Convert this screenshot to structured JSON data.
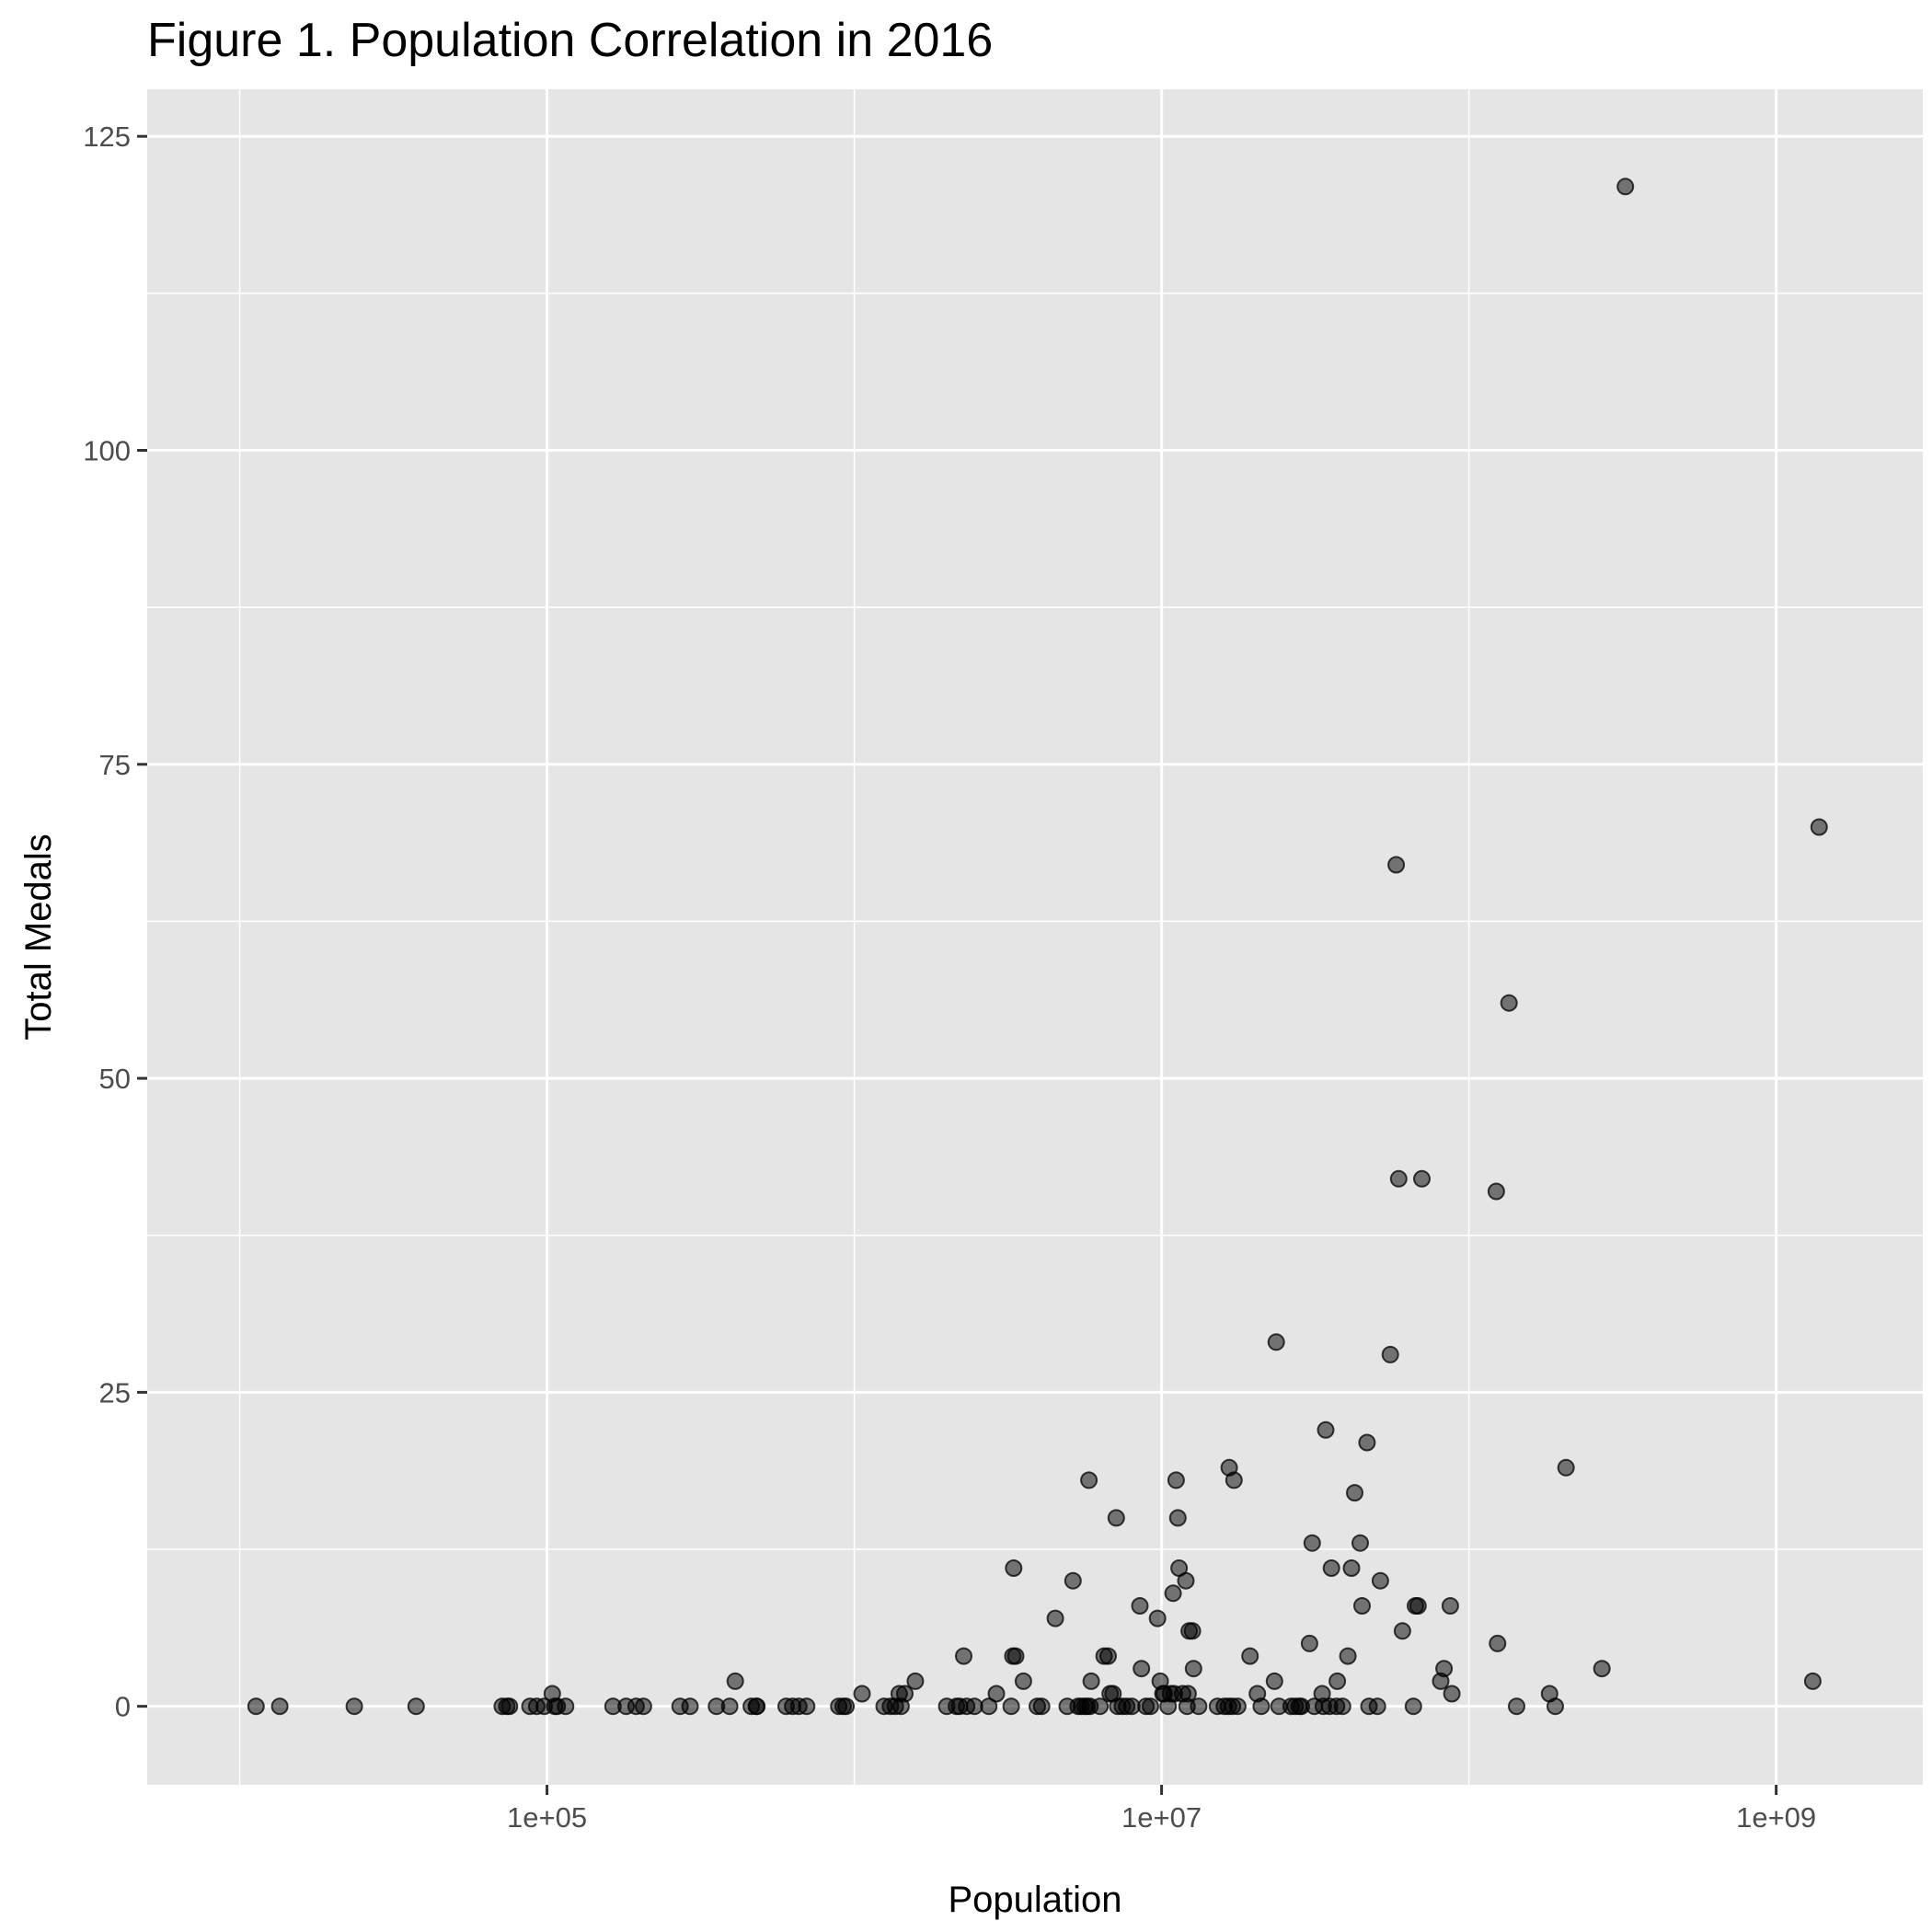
{
  "chart_data": {
    "type": "scatter",
    "title": "Figure 1. Population Correlation in 2016",
    "xlabel": "Population",
    "ylabel": "Total Medals",
    "x_scale": "log10",
    "xlim": [
      5000,
      3000000000
    ],
    "ylim": [
      -6.25,
      128.75
    ],
    "x_ticks": [
      {
        "value": 100000,
        "label": "1e+05"
      },
      {
        "value": 10000000,
        "label": "1e+07"
      },
      {
        "value": 1000000000,
        "label": "1e+09"
      }
    ],
    "x_minor_ticks": [
      10000,
      1000000,
      100000000
    ],
    "y_ticks": [
      {
        "value": 0,
        "label": "0"
      },
      {
        "value": 25,
        "label": "25"
      },
      {
        "value": 50,
        "label": "50"
      },
      {
        "value": 75,
        "label": "75"
      },
      {
        "value": 100,
        "label": "100"
      },
      {
        "value": 125,
        "label": "125"
      }
    ],
    "y_minor_ticks": [
      12.5,
      37.5,
      62.5,
      87.5,
      112.5
    ],
    "grid": true,
    "background": "#e5e5e5",
    "gridline_color": "#ffffff",
    "point_color": "#000000",
    "point_opacity": 0.5,
    "points": [
      [
        11300,
        0
      ],
      [
        13500,
        0
      ],
      [
        23600,
        0
      ],
      [
        37500,
        0
      ],
      [
        71500,
        0
      ],
      [
        74000,
        0
      ],
      [
        75500,
        0
      ],
      [
        88000,
        0
      ],
      [
        92600,
        0
      ],
      [
        98000,
        0
      ],
      [
        104000,
        1
      ],
      [
        106000,
        0
      ],
      [
        108000,
        0
      ],
      [
        115000,
        0
      ],
      [
        164000,
        0
      ],
      [
        181000,
        0
      ],
      [
        195000,
        0
      ],
      [
        206000,
        0
      ],
      [
        271000,
        0
      ],
      [
        292000,
        0
      ],
      [
        356000,
        0
      ],
      [
        393000,
        0
      ],
      [
        410000,
        2
      ],
      [
        462000,
        0
      ],
      [
        480000,
        0
      ],
      [
        482000,
        0
      ],
      [
        600000,
        0
      ],
      [
        630000,
        0
      ],
      [
        660000,
        0
      ],
      [
        700000,
        0
      ],
      [
        890000,
        0
      ],
      [
        920000,
        0
      ],
      [
        940000,
        0
      ],
      [
        1060000,
        1
      ],
      [
        1250000,
        0
      ],
      [
        1310000,
        0
      ],
      [
        1360000,
        0
      ],
      [
        1400000,
        1
      ],
      [
        1420000,
        0
      ],
      [
        1460000,
        1
      ],
      [
        1580000,
        2
      ],
      [
        2000000,
        0
      ],
      [
        2150000,
        0
      ],
      [
        2200000,
        0
      ],
      [
        2270000,
        4
      ],
      [
        2320000,
        0
      ],
      [
        2460000,
        0
      ],
      [
        2740000,
        0
      ],
      [
        2900000,
        1
      ],
      [
        3240000,
        0
      ],
      [
        3280000,
        4
      ],
      [
        3300000,
        11
      ],
      [
        3350000,
        4
      ],
      [
        3550000,
        2
      ],
      [
        3940000,
        0
      ],
      [
        4070000,
        0
      ],
      [
        4510000,
        7
      ],
      [
        4930000,
        0
      ],
      [
        5150000,
        10
      ],
      [
        5350000,
        0
      ],
      [
        5480000,
        0
      ],
      [
        5620000,
        0
      ],
      [
        5720000,
        0
      ],
      [
        5800000,
        18
      ],
      [
        5850000,
        0
      ],
      [
        5900000,
        2
      ],
      [
        6300000,
        0
      ],
      [
        6500000,
        4
      ],
      [
        6700000,
        4
      ],
      [
        6800000,
        1
      ],
      [
        6950000,
        1
      ],
      [
        7120000,
        15
      ],
      [
        7200000,
        0
      ],
      [
        7450000,
        0
      ],
      [
        7700000,
        0
      ],
      [
        8000000,
        0
      ],
      [
        8500000,
        8
      ],
      [
        8600000,
        3
      ],
      [
        8900000,
        0
      ],
      [
        9200000,
        0
      ],
      [
        9700000,
        7
      ],
      [
        9900000,
        2
      ],
      [
        10100000,
        1
      ],
      [
        10200000,
        1
      ],
      [
        10500000,
        0
      ],
      [
        10700000,
        1
      ],
      [
        10900000,
        9
      ],
      [
        11000000,
        1
      ],
      [
        11150000,
        18
      ],
      [
        11300000,
        15
      ],
      [
        11400000,
        11
      ],
      [
        11700000,
        1
      ],
      [
        12000000,
        10
      ],
      [
        12100000,
        0
      ],
      [
        12200000,
        1
      ],
      [
        12300000,
        6
      ],
      [
        12600000,
        6
      ],
      [
        12700000,
        3
      ],
      [
        13200000,
        0
      ],
      [
        15200000,
        0
      ],
      [
        16000000,
        0
      ],
      [
        16500000,
        0
      ],
      [
        16600000,
        19
      ],
      [
        17000000,
        0
      ],
      [
        17200000,
        18
      ],
      [
        17700000,
        0
      ],
      [
        19400000,
        4
      ],
      [
        20500000,
        1
      ],
      [
        21100000,
        0
      ],
      [
        23300000,
        2
      ],
      [
        23600000,
        29
      ],
      [
        24100000,
        0
      ],
      [
        26400000,
        0
      ],
      [
        27200000,
        0
      ],
      [
        28000000,
        0
      ],
      [
        28500000,
        0
      ],
      [
        30300000,
        5
      ],
      [
        30900000,
        13
      ],
      [
        31400000,
        0
      ],
      [
        33300000,
        1
      ],
      [
        33600000,
        0
      ],
      [
        34200000,
        22
      ],
      [
        35200000,
        0
      ],
      [
        35700000,
        11
      ],
      [
        37100000,
        0
      ],
      [
        37300000,
        2
      ],
      [
        38800000,
        0
      ],
      [
        40400000,
        4
      ],
      [
        41500000,
        11
      ],
      [
        42500000,
        17
      ],
      [
        44300000,
        13
      ],
      [
        44900000,
        8
      ],
      [
        46600000,
        21
      ],
      [
        47300000,
        0
      ],
      [
        50400000,
        0
      ],
      [
        51500000,
        10
      ],
      [
        55500000,
        28
      ],
      [
        58000000,
        67
      ],
      [
        59100000,
        42
      ],
      [
        60800000,
        6
      ],
      [
        66000000,
        0
      ],
      [
        67000000,
        8
      ],
      [
        68300000,
        8
      ],
      [
        70300000,
        42
      ],
      [
        81000000,
        2
      ],
      [
        83000000,
        3
      ],
      [
        87000000,
        8
      ],
      [
        88000000,
        1
      ],
      [
        122800000,
        41
      ],
      [
        124000000,
        5
      ],
      [
        135000000,
        56
      ],
      [
        143000000,
        0
      ],
      [
        183000000,
        1
      ],
      [
        191000000,
        0
      ],
      [
        207000000,
        19
      ],
      [
        271000000,
        3
      ],
      [
        323000000,
        121
      ],
      [
        1315000000,
        2
      ],
      [
        1379000000,
        70
      ]
    ]
  }
}
